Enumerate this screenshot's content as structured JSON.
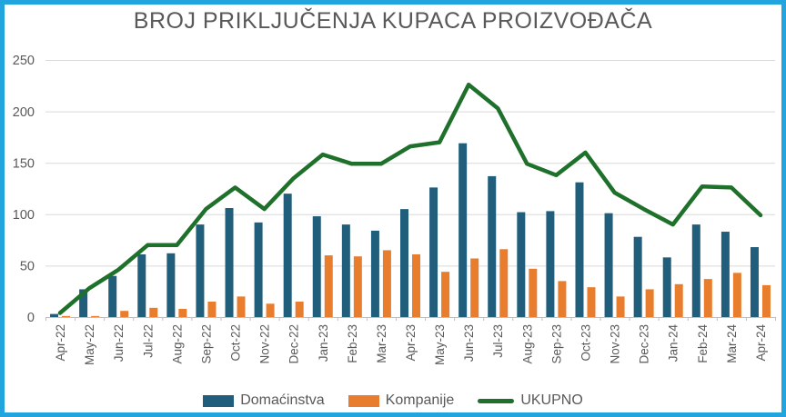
{
  "chart_data": {
    "type": "bar",
    "subtype": "clustered-bars-with-line-overlay",
    "title": "BROJ PRIKLJUČENJA KUPACA PROIZVOĐAČA",
    "xlabel": "",
    "ylabel": "",
    "ylim": [
      0,
      250
    ],
    "y_ticks": [
      0,
      50,
      100,
      150,
      200,
      250
    ],
    "grid": "horizontal",
    "legend_position": "bottom",
    "categories": [
      "Apr-22",
      "May-22",
      "Jun-22",
      "Jul-22",
      "Aug-22",
      "Sep-22",
      "Oct-22",
      "Nov-22",
      "Dec-22",
      "Jan-23",
      "Feb-23",
      "Mar-23",
      "Apr-23",
      "May-23",
      "Jun-23",
      "Jul-23",
      "Aug-23",
      "Sep-23",
      "Oct-23",
      "Nov-23",
      "Dec-23",
      "Jan-24",
      "Feb-24",
      "Mar-24",
      "Apr-24"
    ],
    "series": [
      {
        "name": "Domaćinstva",
        "type": "bar",
        "color": "#205E7C",
        "values": [
          3,
          27,
          40,
          61,
          62,
          90,
          106,
          92,
          120,
          98,
          90,
          84,
          105,
          126,
          169,
          137,
          102,
          103,
          131,
          101,
          78,
          58,
          90,
          83,
          68
        ]
      },
      {
        "name": "Kompanije",
        "type": "bar",
        "color": "#E87D2E",
        "values": [
          1,
          1,
          6,
          9,
          8,
          15,
          20,
          13,
          15,
          60,
          59,
          65,
          61,
          44,
          57,
          66,
          47,
          35,
          29,
          20,
          27,
          32,
          37,
          43,
          31
        ]
      },
      {
        "name": "UKUPNO",
        "type": "line",
        "color": "#1F702B",
        "values": [
          4,
          28,
          46,
          70,
          70,
          105,
          126,
          105,
          135,
          158,
          149,
          149,
          166,
          170,
          226,
          203,
          149,
          138,
          160,
          121,
          105,
          90,
          127,
          126,
          99
        ]
      }
    ]
  },
  "style": {
    "frame_border_color": "#22A5DE",
    "gridline_color": "#D9D9D9",
    "axis_color": "#BFBFBF",
    "text_color": "#595959",
    "background": "#FFFFFF"
  }
}
